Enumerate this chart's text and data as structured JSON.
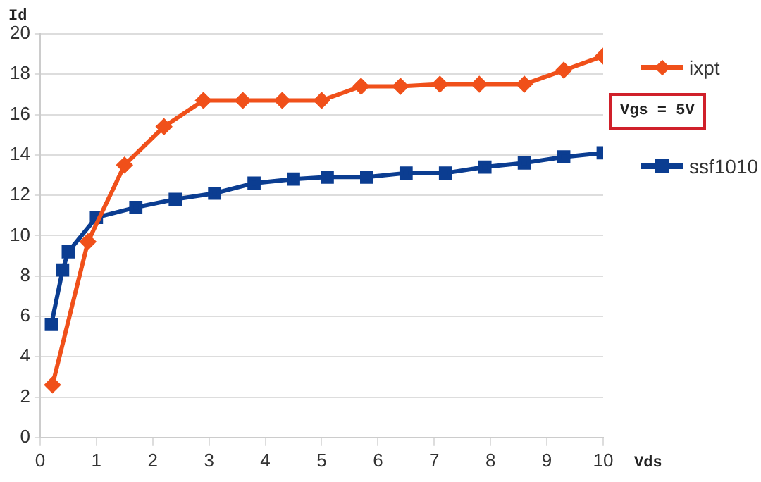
{
  "chart_data": {
    "type": "line",
    "xlabel": "Vds",
    "ylabel": "Id",
    "annotations": [
      "Vgs = 5V"
    ],
    "xlim": [
      0,
      10
    ],
    "xticks": [
      0,
      1,
      2,
      3,
      4,
      5,
      6,
      7,
      8,
      9,
      10
    ],
    "ylim": [
      0,
      20
    ],
    "yticks": [
      0,
      2,
      4,
      6,
      8,
      10,
      12,
      14,
      16,
      18,
      20
    ],
    "grid": "y",
    "legend": "right",
    "line_style": "solid",
    "series": [
      {
        "name": "ixpt",
        "color": "#f0501a",
        "marker": "diamond",
        "x": [
          0.22,
          0.85,
          1.5,
          2.2,
          2.9,
          3.6,
          4.3,
          5.0,
          5.7,
          6.4,
          7.1,
          7.8,
          8.6,
          9.3,
          10
        ],
        "values": [
          2.6,
          9.7,
          13.5,
          15.4,
          16.7,
          16.7,
          16.7,
          16.7,
          17.4,
          17.4,
          17.5,
          17.5,
          17.5,
          18.2,
          18.9
        ]
      },
      {
        "name": "ssf1010",
        "color": "#0b3d91",
        "marker": "square",
        "x": [
          0.2,
          0.4,
          0.5,
          1.0,
          1.7,
          2.4,
          3.1,
          3.8,
          4.5,
          5.1,
          5.8,
          6.5,
          7.2,
          7.9,
          8.6,
          9.3,
          10
        ],
        "values": [
          5.6,
          8.3,
          9.2,
          10.9,
          11.4,
          11.8,
          12.1,
          12.6,
          12.8,
          12.9,
          12.9,
          13.1,
          13.1,
          13.4,
          13.6,
          13.9,
          14.1
        ]
      }
    ]
  }
}
